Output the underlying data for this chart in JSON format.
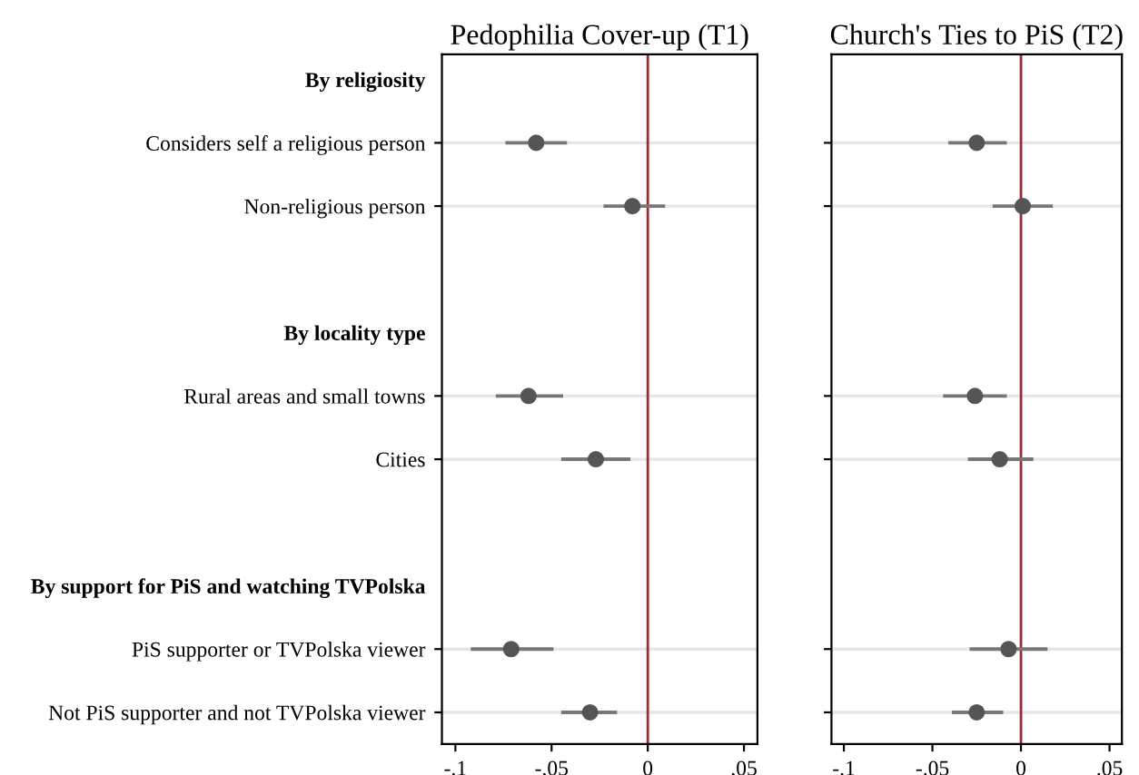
{
  "chart_data": [
    {
      "type": "scatter",
      "orientation": "horizontal",
      "title": "Pedophilia Cover-up (T1)",
      "categories": [
        "By religiosity",
        "Considers self a religious person",
        "Non-religious person",
        null,
        "By locality type",
        "Rural areas and small towns",
        "Cities",
        null,
        "By support for PiS and watching TVPolska",
        "PiS supporter or TVPolska viewer",
        "Not PiS supporter and not TVPolska viewer"
      ],
      "color": "#555555",
      "values": [
        null,
        -0.058,
        -0.008,
        null,
        null,
        -0.062,
        -0.027,
        null,
        null,
        -0.071,
        -0.03
      ],
      "errors": [
        null,
        [
          -0.074,
          -0.042
        ],
        [
          -0.023,
          0.009
        ],
        null,
        null,
        [
          -0.079,
          -0.044
        ],
        [
          -0.045,
          -0.009
        ],
        null,
        null,
        [
          -0.092,
          -0.049
        ],
        [
          -0.045,
          -0.016
        ]
      ],
      "xlim": [
        -0.107,
        0.057
      ],
      "xticks": [
        {
          "value": -0.1,
          "label": "-.1"
        },
        {
          "value": -0.05,
          "label": "-.05"
        },
        0,
        {
          "value": 0.05,
          "label": ".05"
        }
      ],
      "ref_lines": [
        {
          "axis": "x",
          "value": 0,
          "color": "#a0282d"
        }
      ],
      "grid": "y",
      "marker": "circle"
    },
    {
      "type": "scatter",
      "orientation": "horizontal",
      "title": "Church's Ties to PiS (T2)",
      "categories": [
        null,
        null,
        null,
        null,
        null,
        null,
        null,
        null,
        null,
        null,
        null
      ],
      "color": "#555555",
      "values": [
        null,
        -0.025,
        0.001,
        null,
        null,
        -0.026,
        -0.012,
        null,
        null,
        -0.007,
        -0.025
      ],
      "errors": [
        null,
        [
          -0.041,
          -0.008
        ],
        [
          -0.016,
          0.018
        ],
        null,
        null,
        [
          -0.044,
          -0.008
        ],
        [
          -0.03,
          0.007
        ],
        null,
        null,
        [
          -0.029,
          0.015
        ],
        [
          -0.039,
          -0.01
        ]
      ],
      "xlim": [
        -0.107,
        0.057
      ],
      "xticks": [
        {
          "value": -0.1,
          "label": "-.1"
        },
        {
          "value": -0.05,
          "label": "-.05"
        },
        0,
        {
          "value": 0.05,
          "label": ".05"
        }
      ],
      "ref_lines": [
        {
          "axis": "x",
          "value": 0,
          "color": "#a0282d"
        }
      ],
      "grid": "y",
      "marker": "circle",
      "tick_labels": "x"
    }
  ]
}
